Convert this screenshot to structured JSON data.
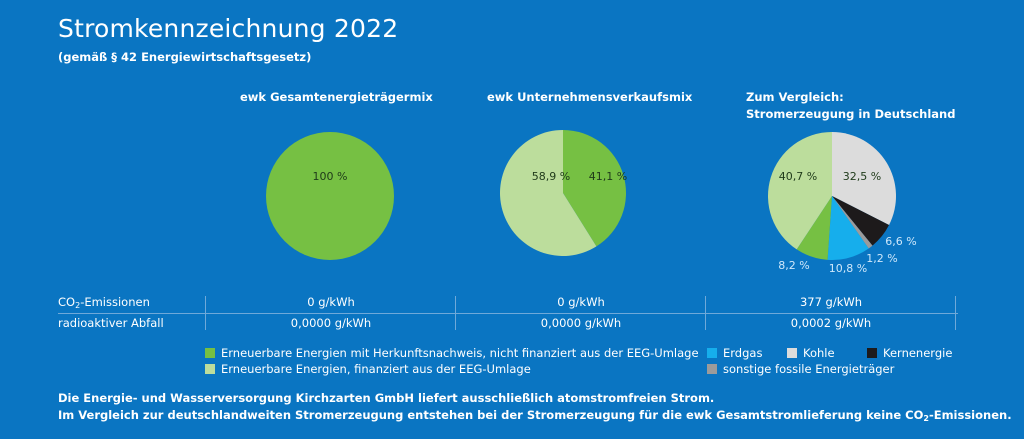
{
  "header": {
    "title": "Stromkennzeichnung 2022",
    "subtitle": "(gemäß § 42 Energiewirtschaftsgesetz)"
  },
  "colors": {
    "background": "#0a75c2",
    "ee_hkn": "#76c043",
    "ee_eeg": "#bcdd9c",
    "erdgas": "#16aeec",
    "kohle": "#dcdcdc",
    "kernenergie": "#1d1a1b",
    "sonstige": "#9b9b9b",
    "label_dark": "#1f3a1a",
    "label_light": "#cfe8fb"
  },
  "chart_data": [
    {
      "type": "pie",
      "title": "ewk Gesamtenergieträgermix",
      "slices": [
        {
          "name": "Erneuerbare Energien mit Herkunftsnachweis, nicht finanziert aus der EEG-Umlage",
          "value": 100,
          "label": "100 %",
          "color_key": "ee_hkn"
        }
      ]
    },
    {
      "type": "pie",
      "title": "ewk Unternehmensverkaufsmix",
      "slices": [
        {
          "name": "Erneuerbare Energien mit Herkunftsnachweis, nicht finanziert aus der EEG-Umlage",
          "value": 41.1,
          "label": "41,1 %",
          "color_key": "ee_hkn"
        },
        {
          "name": "Erneuerbare Energien, finanziert aus der EEG-Umlage",
          "value": 58.9,
          "label": "58,9 %",
          "color_key": "ee_eeg"
        }
      ]
    },
    {
      "type": "pie",
      "title_line1": "Zum Vergleich:",
      "title_line2": "Stromerzeugung in Deutschland",
      "slices": [
        {
          "name": "Kohle",
          "value": 32.5,
          "label": "32,5 %",
          "color_key": "kohle"
        },
        {
          "name": "Kernenergie",
          "value": 6.6,
          "label": "6,6 %",
          "color_key": "kernenergie"
        },
        {
          "name": "sonstige fossile Energieträger",
          "value": 1.2,
          "label": "1,2 %",
          "color_key": "sonstige"
        },
        {
          "name": "Erdgas",
          "value": 10.8,
          "label": "10,8 %",
          "color_key": "erdgas"
        },
        {
          "name": "Erneuerbare Energien mit Herkunftsnachweis, nicht finanziert aus der EEG-Umlage",
          "value": 8.2,
          "label": "8,2 %",
          "color_key": "ee_hkn"
        },
        {
          "name": "Erneuerbare Energien, finanziert aus der EEG-Umlage",
          "value": 40.7,
          "label": "40,7 %",
          "color_key": "ee_eeg"
        }
      ]
    }
  ],
  "table": {
    "co2_label_pre": "CO",
    "co2_label_sub": "2",
    "co2_label_post": "-Emissionen",
    "waste_label": "radioaktiver Abfall",
    "co2_values": [
      "0 g/kWh",
      "0 g/kWh",
      "377 g/kWh"
    ],
    "waste_values": [
      "0,0000 g/kWh",
      "0,0000 g/kWh",
      "0,0002 g/kWh"
    ]
  },
  "legend": {
    "ee_hkn": "Erneuerbare Energien mit Herkunftsnachweis, nicht finanziert aus der EEG-Umlage",
    "ee_eeg": "Erneuerbare Energien, finanziert aus der EEG-Umlage",
    "erdgas": "Erdgas",
    "kohle": "Kohle",
    "kernenergie": "Kernenergie",
    "sonstige": "sonstige fossile Energieträger"
  },
  "footer": {
    "line1": "Die Energie- und Wasserversorgung Kirchzarten GmbH liefert ausschließlich atomstromfreien Strom.",
    "line2_pre": "Im Vergleich zur deutschlandweiten Stromerzeugung entstehen bei der Stromerzeugung für die ewk Gesamtstromlieferung keine CO",
    "line2_sub": "2",
    "line2_post": "-Emissionen."
  }
}
